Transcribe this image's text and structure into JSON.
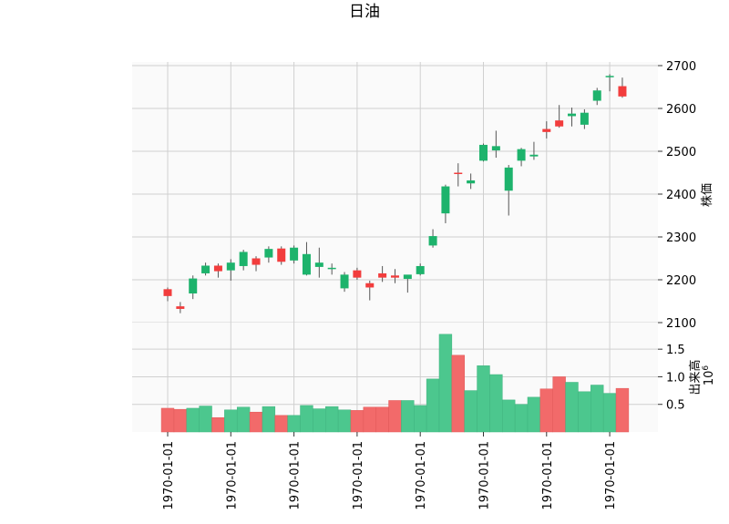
{
  "chart_data": {
    "type": "candlestick",
    "title": "日油",
    "price_panel": {
      "ylabel": "株価",
      "ylim": [
        2100,
        2700
      ],
      "yticks": [
        2100,
        2200,
        2300,
        2400,
        2500,
        2600,
        2700
      ],
      "grid": true,
      "y_axis_side": "right"
    },
    "volume_panel": {
      "ylabel": "出来高",
      "scale_label": "10^6",
      "yticks": [
        0.5,
        1.0,
        1.5
      ],
      "ytick_labels": [
        "0.5",
        "1.0",
        "1.5"
      ],
      "grid": true,
      "y_axis_side": "right"
    },
    "x_tick_labels": [
      "1970-01-01",
      "1970-01-01",
      "1970-01-01",
      "1970-01-01",
      "1970-01-01",
      "1970-01-01",
      "1970-01-01",
      "1970-01-01"
    ],
    "x_tick_candle_index": [
      0,
      5,
      10,
      15,
      20,
      25,
      30,
      35
    ],
    "up_color": "#1db36c",
    "down_color": "#f23d3d",
    "candles": [
      {
        "o": 2178,
        "h": 2182,
        "l": 2150,
        "c": 2162,
        "v": 0.43
      },
      {
        "o": 2138,
        "h": 2148,
        "l": 2122,
        "c": 2132,
        "v": 0.41
      },
      {
        "o": 2168,
        "h": 2210,
        "l": 2155,
        "c": 2203,
        "v": 0.43
      },
      {
        "o": 2215,
        "h": 2240,
        "l": 2210,
        "c": 2233,
        "v": 0.47
      },
      {
        "o": 2233,
        "h": 2238,
        "l": 2205,
        "c": 2220,
        "v": 0.26
      },
      {
        "o": 2222,
        "h": 2248,
        "l": 2198,
        "c": 2240,
        "v": 0.4
      },
      {
        "o": 2232,
        "h": 2270,
        "l": 2222,
        "c": 2265,
        "v": 0.45
      },
      {
        "o": 2250,
        "h": 2255,
        "l": 2220,
        "c": 2235,
        "v": 0.36
      },
      {
        "o": 2252,
        "h": 2278,
        "l": 2240,
        "c": 2272,
        "v": 0.46
      },
      {
        "o": 2273,
        "h": 2278,
        "l": 2235,
        "c": 2242,
        "v": 0.3
      },
      {
        "o": 2245,
        "h": 2280,
        "l": 2238,
        "c": 2275,
        "v": 0.3
      },
      {
        "o": 2212,
        "h": 2288,
        "l": 2210,
        "c": 2260,
        "v": 0.48
      },
      {
        "o": 2230,
        "h": 2275,
        "l": 2205,
        "c": 2240,
        "v": 0.42
      },
      {
        "o": 2225,
        "h": 2238,
        "l": 2212,
        "c": 2228,
        "v": 0.46
      },
      {
        "o": 2180,
        "h": 2218,
        "l": 2172,
        "c": 2212,
        "v": 0.4
      },
      {
        "o": 2222,
        "h": 2228,
        "l": 2200,
        "c": 2205,
        "v": 0.39
      },
      {
        "o": 2192,
        "h": 2198,
        "l": 2152,
        "c": 2182,
        "v": 0.45
      },
      {
        "o": 2215,
        "h": 2232,
        "l": 2195,
        "c": 2205,
        "v": 0.45
      },
      {
        "o": 2210,
        "h": 2225,
        "l": 2192,
        "c": 2205,
        "v": 0.57
      },
      {
        "o": 2202,
        "h": 2210,
        "l": 2170,
        "c": 2212,
        "v": 0.57
      },
      {
        "o": 2213,
        "h": 2238,
        "l": 2210,
        "c": 2232,
        "v": 0.48
      },
      {
        "o": 2280,
        "h": 2318,
        "l": 2275,
        "c": 2302,
        "v": 0.96
      },
      {
        "o": 2355,
        "h": 2422,
        "l": 2332,
        "c": 2418,
        "v": 1.77
      },
      {
        "o": 2450,
        "h": 2472,
        "l": 2418,
        "c": 2448,
        "v": 1.39
      },
      {
        "o": 2425,
        "h": 2448,
        "l": 2412,
        "c": 2432,
        "v": 0.75
      },
      {
        "o": 2478,
        "h": 2518,
        "l": 2476,
        "c": 2515,
        "v": 1.2
      },
      {
        "o": 2502,
        "h": 2548,
        "l": 2485,
        "c": 2512,
        "v": 1.04
      },
      {
        "o": 2408,
        "h": 2468,
        "l": 2350,
        "c": 2462,
        "v": 0.58
      },
      {
        "o": 2478,
        "h": 2508,
        "l": 2465,
        "c": 2505,
        "v": 0.5
      },
      {
        "o": 2488,
        "h": 2522,
        "l": 2480,
        "c": 2492,
        "v": 0.63
      },
      {
        "o": 2552,
        "h": 2570,
        "l": 2530,
        "c": 2545,
        "v": 0.78
      },
      {
        "o": 2572,
        "h": 2608,
        "l": 2555,
        "c": 2558,
        "v": 1.0
      },
      {
        "o": 2582,
        "h": 2602,
        "l": 2558,
        "c": 2588,
        "v": 0.9
      },
      {
        "o": 2562,
        "h": 2598,
        "l": 2552,
        "c": 2590,
        "v": 0.73
      },
      {
        "o": 2618,
        "h": 2648,
        "l": 2608,
        "c": 2642,
        "v": 0.85
      },
      {
        "o": 2675,
        "h": 2680,
        "l": 2640,
        "c": 2676,
        "v": 0.7
      },
      {
        "o": 2652,
        "h": 2672,
        "l": 2625,
        "c": 2628,
        "v": 0.79
      }
    ]
  }
}
